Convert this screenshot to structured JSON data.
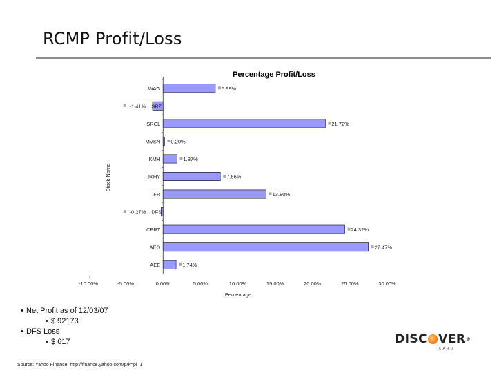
{
  "slide": {
    "title": "RCMP Profit/Loss"
  },
  "bullets": [
    {
      "level": 1,
      "text": "Net Profit as of 12/03/07"
    },
    {
      "level": 2,
      "text": "$ 92173"
    },
    {
      "level": 1,
      "text": "DFS Loss"
    },
    {
      "level": 2,
      "text": "$ 617"
    }
  ],
  "source": "Source: Yahoo Finance: http://finance.yahoo.com/p/k=pl_1",
  "logo": {
    "part1": "DISC",
    "part2": "VER",
    "trademark": "®",
    "sub": "CARD",
    "colors": {
      "orange": "#f47c20",
      "text": "#222222"
    }
  },
  "chart_data": {
    "type": "bar",
    "orientation": "horizontal",
    "title": "Percentage Profit/Loss",
    "xlabel": "Percentage",
    "ylabel": "Stock Name",
    "xlim": [
      -10,
      30
    ],
    "xticks": [
      -10,
      -5,
      0,
      5,
      10,
      15,
      20,
      25,
      30
    ],
    "xtick_labels": [
      "-10.00%",
      "-5.00%",
      "0.00%",
      "5.00%",
      "10.00%",
      "15.00%",
      "20.00%",
      "25.00%",
      "30.00%"
    ],
    "categories": [
      "WAG",
      "SRZ",
      "SRCL",
      "MVSN",
      "KMH",
      "JKHY",
      "FR",
      "DFS",
      "CPRT",
      "AEO",
      "AEE"
    ],
    "values": [
      6.99,
      -1.41,
      21.72,
      0.2,
      1.87,
      7.66,
      13.8,
      -0.27,
      24.32,
      27.47,
      1.74
    ],
    "value_labels": [
      "6.99%",
      "-1.41%",
      "21.72%",
      "0.20%",
      "1.87%",
      "7.66%",
      "13.80%",
      "-0.27%",
      "24.32%",
      "27.47%",
      "1.74%"
    ],
    "grid": false,
    "legend": "none",
    "colors": {
      "bar": "#9999ff",
      "bar_edge": "#222222",
      "marker": "#aaaaaa"
    }
  }
}
